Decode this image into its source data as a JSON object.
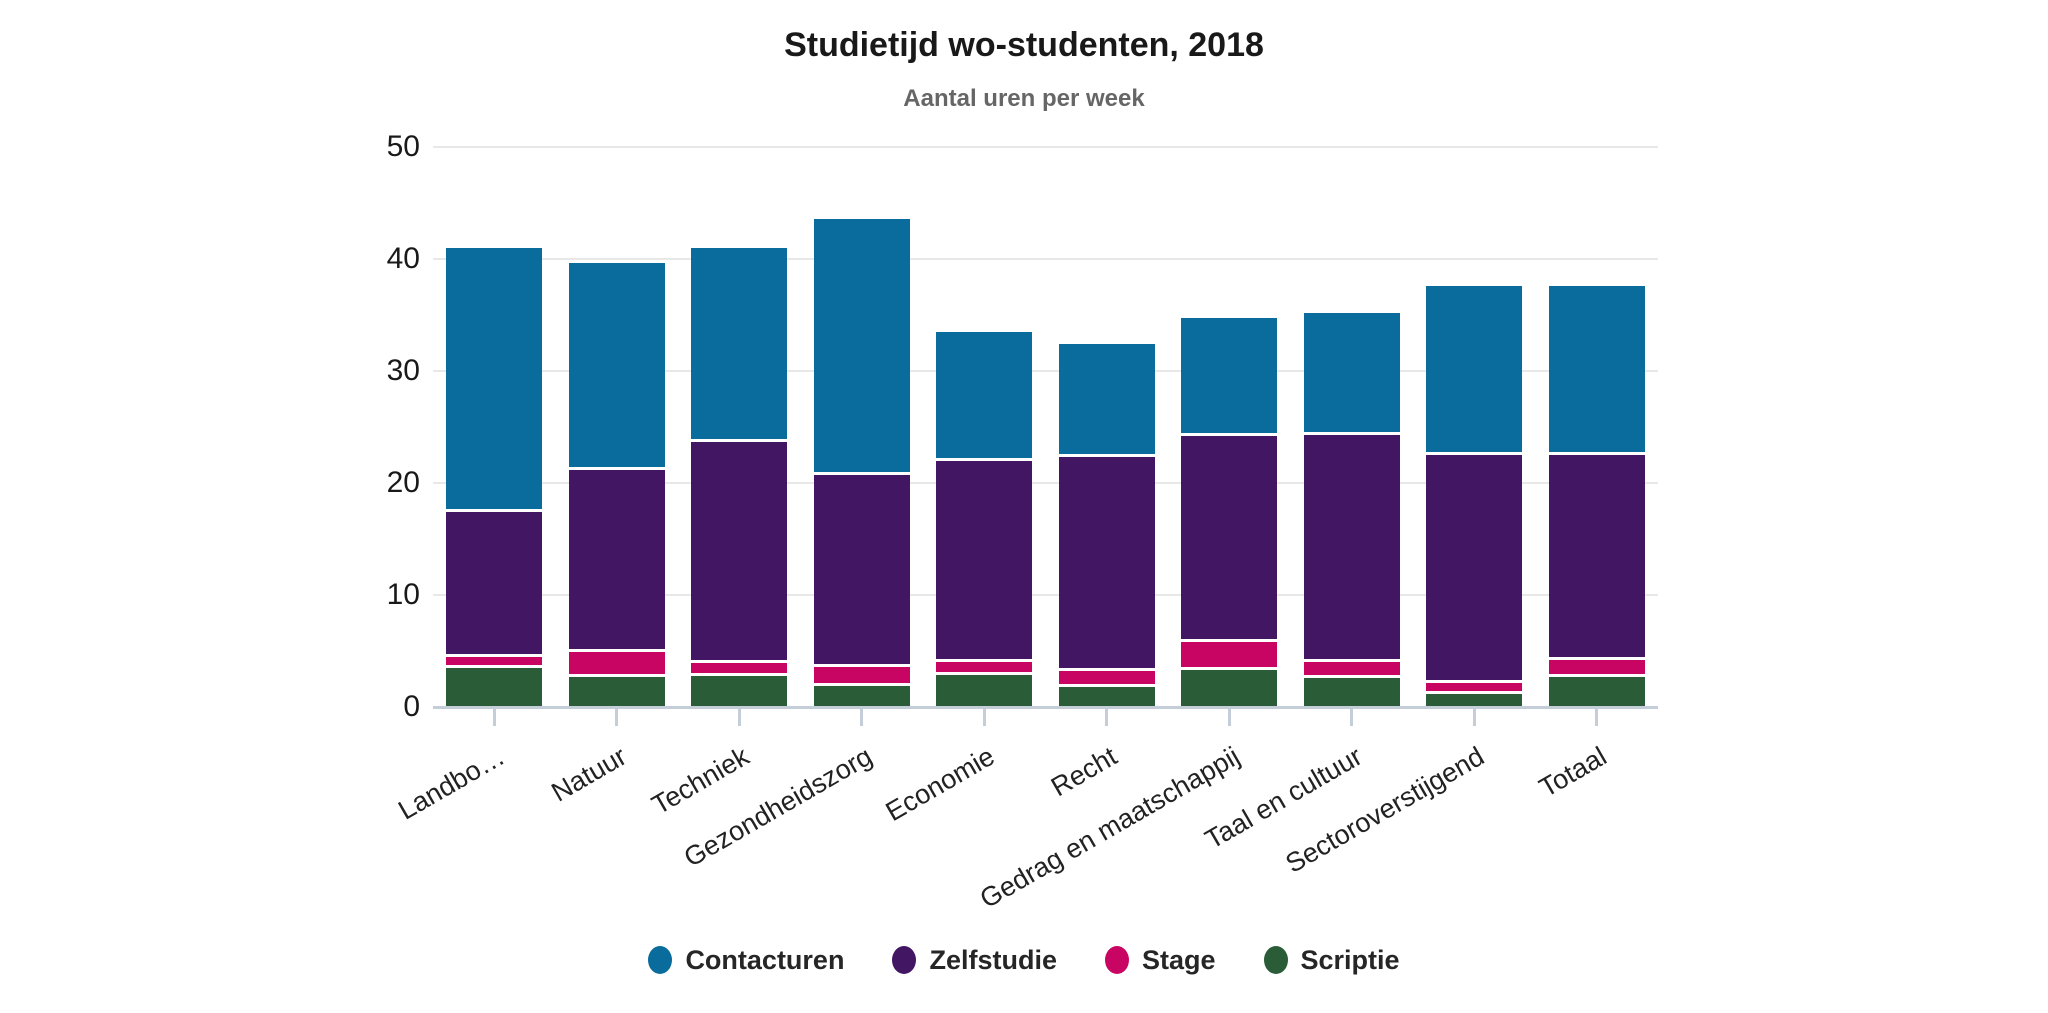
{
  "header": {
    "title": "Studietijd wo-studenten, 2018",
    "subtitle": "Aantal uren per week"
  },
  "chart_data": {
    "type": "bar",
    "stacked": true,
    "title": "Studietijd wo-studenten, 2018",
    "subtitle": "Aantal uren per week",
    "categories": [
      "Landbo…",
      "Natuur",
      "Techniek",
      "Gezondheidszorg",
      "Economie",
      "Recht",
      "Gedrag en maatschappij",
      "Taal en cultuur",
      "Sectoroverstijgend",
      "Totaal"
    ],
    "series": [
      {
        "name": "Contacturen",
        "color": "#0a6c9c",
        "values": [
          23.6,
          18.4,
          17.3,
          22.9,
          11.5,
          10.1,
          10.5,
          10.9,
          15.1,
          15.1
        ]
      },
      {
        "name": "Zelfstudie",
        "color": "#421663",
        "values": [
          12.9,
          16.3,
          19.8,
          17.1,
          18.0,
          19.1,
          18.4,
          20.3,
          20.4,
          18.3
        ]
      },
      {
        "name": "Stage",
        "color": "#c90563",
        "values": [
          1.0,
          2.2,
          1.1,
          1.7,
          1.1,
          1.4,
          2.5,
          1.4,
          0.9,
          1.5
        ]
      },
      {
        "name": "Scriptie",
        "color": "#2a5c38",
        "values": [
          3.5,
          2.7,
          2.8,
          1.9,
          2.9,
          1.8,
          3.3,
          2.6,
          1.2,
          2.7
        ]
      }
    ],
    "stack_bottom_to_top": [
      "Scriptie",
      "Stage",
      "Zelfstudie",
      "Contacturen"
    ],
    "ylabel": "Aantal uren per week",
    "xlabel": "",
    "y_axis": {
      "min": 0,
      "max": 50,
      "tick_interval": 10,
      "tick_labels": [
        "0",
        "10",
        "20",
        "30",
        "40",
        "50"
      ]
    },
    "grid": true,
    "grid_color": "#e8e8e8",
    "axis_color": "#c3ced9",
    "background_color": "#ffffff",
    "legend_position": "bottom"
  }
}
